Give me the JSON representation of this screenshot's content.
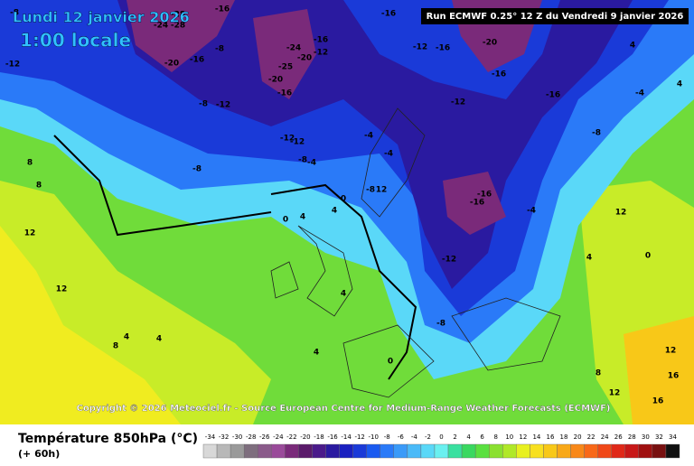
{
  "header": {
    "date": "Lundi 12 janvier 2026",
    "time": "1:00 locale",
    "run": "Run ECMWF 0.25° 12 Z du Vendredi 9 janvier 2026"
  },
  "footer": {
    "copyright": "Copyright © 2026 Meteociel.fr - Source European Centre for Medium-Range Weather Forecasts (ECMWF)",
    "variable": "Température 850hPa (°C)",
    "lead": "(+ 60h)"
  },
  "colorbar": {
    "ticks": [
      -34,
      -32,
      -30,
      -28,
      -26,
      -24,
      -22,
      -20,
      -18,
      -16,
      -14,
      -12,
      -10,
      -8,
      -6,
      -4,
      -2,
      0,
      2,
      4,
      6,
      8,
      10,
      12,
      14,
      16,
      18,
      20,
      22,
      24,
      26,
      28,
      30,
      32,
      34
    ],
    "colors": [
      "#d8d8d8",
      "#b8b8b8",
      "#9a9a9a",
      "#7e6e7e",
      "#8a5a8a",
      "#9a4a9a",
      "#7a2a7a",
      "#5a1a6a",
      "#4a1a8a",
      "#2a1aa0",
      "#1a20c0",
      "#1a3ad8",
      "#1a5af0",
      "#2a7af8",
      "#3a9af8",
      "#4abaf8",
      "#5ad8f8",
      "#6af0f0",
      "#3ae0a0",
      "#3ad860",
      "#5ae040",
      "#8ae030",
      "#b0e828",
      "#e8f020",
      "#f8e020",
      "#f8c818",
      "#f8a818",
      "#f88818",
      "#f86818",
      "#f04818",
      "#e02818",
      "#c81818",
      "#a01010",
      "#781010",
      "#101010"
    ]
  },
  "map": {
    "contour_labels": [
      -8,
      -16,
      -28,
      -28,
      -24,
      -20,
      -16,
      -8,
      -12,
      -8,
      -12,
      -24,
      -16,
      -20,
      -25,
      -12,
      -20,
      -16,
      -16,
      -12,
      -16,
      -20,
      -16,
      -16,
      -12,
      -8,
      -12,
      -12,
      -8,
      -4,
      -4,
      -4,
      -8,
      12,
      -16,
      -16,
      -4,
      -12,
      -8,
      0,
      0,
      4,
      4,
      4,
      4,
      8,
      8,
      12,
      12,
      8,
      4,
      4,
      12,
      0,
      4,
      12,
      16,
      16,
      8,
      12,
      4,
      4,
      -4,
      -8,
      0
    ]
  }
}
